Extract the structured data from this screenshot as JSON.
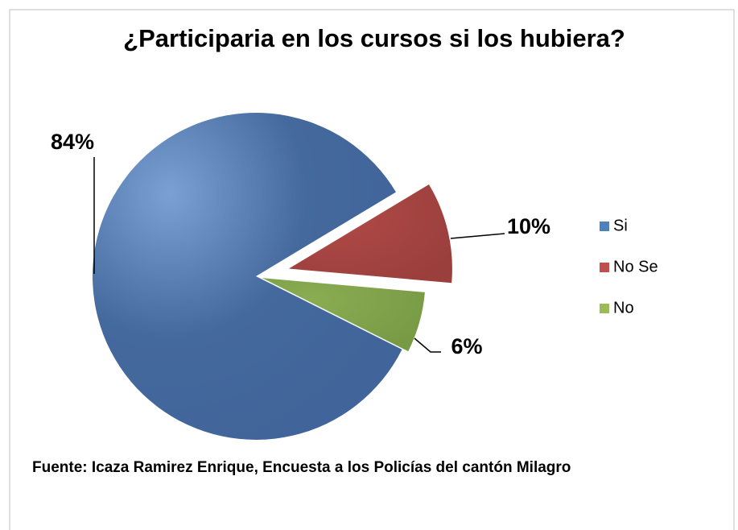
{
  "chart_data": {
    "type": "pie",
    "title": "¿Participaria en los cursos si los hubiera?",
    "categories": [
      "Si",
      "No Se",
      "No"
    ],
    "values": [
      84,
      10,
      6
    ],
    "value_labels": [
      "84%",
      "10%",
      "6%"
    ],
    "colors": [
      "#4f81bd",
      "#c0504d",
      "#9bbb59"
    ],
    "legend": "right",
    "source": "Fuente: Icaza Ramirez Enrique, Encuesta a los Policías  del cantón Milagro"
  }
}
